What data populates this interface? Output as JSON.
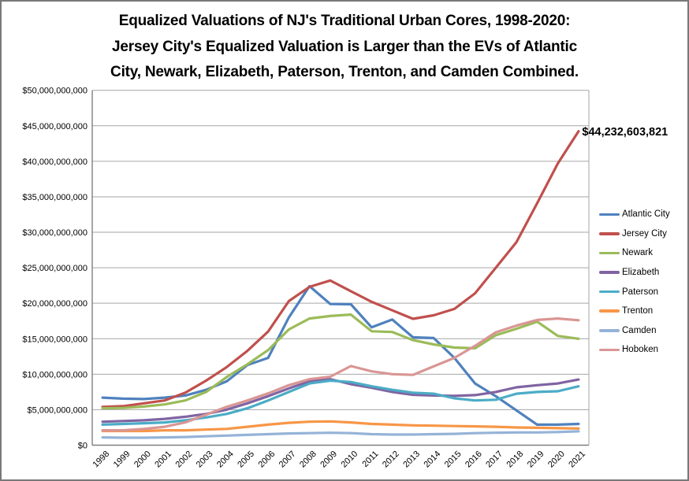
{
  "chart_data": {
    "type": "line",
    "title": "Equalized Valuations of NJ's Traditional Urban Cores, 1998-2020: Jersey City's Equalized Valuation is Larger than the EVs of Atlantic City, Newark, Elizabeth, Paterson, Trenton, and Camden Combined.",
    "title_lines": [
      "Equalized Valuations of NJ's Traditional Urban Cores, 1998-2020:",
      "Jersey City's Equalized Valuation is Larger than the EVs of Atlantic",
      "City, Newark, Elizabeth, Paterson, Trenton, and Camden Combined."
    ],
    "xlabel": "",
    "ylabel": "",
    "x": [
      "1998",
      "1999",
      "2000",
      "2001",
      "2002",
      "2003",
      "2004",
      "2005",
      "2006",
      "2007",
      "2008",
      "2009",
      "2010",
      "2011",
      "2012",
      "2013",
      "2014",
      "2015",
      "2016",
      "2017",
      "2018",
      "2019",
      "2020",
      "2021"
    ],
    "ylim": [
      0,
      50000000000
    ],
    "ytick_step": 5000000000,
    "y_tick_labels": [
      "$0",
      "$5,000,000,000",
      "$10,000,000,000",
      "$15,000,000,000",
      "$20,000,000,000",
      "$25,000,000,000",
      "$30,000,000,000",
      "$35,000,000,000",
      "$40,000,000,000",
      "$45,000,000,000",
      "$50,000,000,000"
    ],
    "grid": true,
    "legend_position": "right",
    "annotation": {
      "text": "$44,232,603,821",
      "series": "Jersey City",
      "year": "2021",
      "value": 44232603821
    },
    "series": [
      {
        "name": "Atlantic City",
        "color": "#4F81BD",
        "values": [
          6700000000,
          6550000000,
          6500000000,
          6700000000,
          7000000000,
          7800000000,
          9000000000,
          11300000000,
          12300000000,
          18000000000,
          22400000000,
          19900000000,
          19850000000,
          16600000000,
          17700000000,
          15200000000,
          15100000000,
          12300000000,
          8700000000,
          6900000000,
          4900000000,
          2900000000,
          2900000000,
          3000000000
        ]
      },
      {
        "name": "Jersey City",
        "color": "#C0504D",
        "values": [
          5400000000,
          5500000000,
          5900000000,
          6300000000,
          7400000000,
          9100000000,
          11000000000,
          13300000000,
          16000000000,
          20300000000,
          22300000000,
          23200000000,
          21700000000,
          20200000000,
          19000000000,
          17800000000,
          18300000000,
          19200000000,
          21400000000,
          25000000000,
          28600000000,
          34100000000,
          39700000000,
          44232603821
        ]
      },
      {
        "name": "Newark",
        "color": "#9BBB59",
        "values": [
          5200000000,
          5250000000,
          5450000000,
          5750000000,
          6300000000,
          7500000000,
          9600000000,
          11400000000,
          13400000000,
          16300000000,
          17850000000,
          18200000000,
          18400000000,
          16050000000,
          15950000000,
          14800000000,
          14200000000,
          13750000000,
          13650000000,
          15500000000,
          16400000000,
          17400000000,
          15400000000,
          15000000000
        ]
      },
      {
        "name": "Elizabeth",
        "color": "#8064A2",
        "values": [
          3300000000,
          3400000000,
          3500000000,
          3700000000,
          4000000000,
          4400000000,
          5000000000,
          5900000000,
          6900000000,
          8000000000,
          9000000000,
          9300000000,
          8600000000,
          8100000000,
          7500000000,
          7100000000,
          7000000000,
          6950000000,
          7050000000,
          7500000000,
          8150000000,
          8450000000,
          8700000000,
          9250000000
        ]
      },
      {
        "name": "Paterson",
        "color": "#4BACC6",
        "values": [
          2900000000,
          3000000000,
          3100000000,
          3200000000,
          3500000000,
          3900000000,
          4400000000,
          5200000000,
          6300000000,
          7500000000,
          8700000000,
          9100000000,
          8900000000,
          8300000000,
          7800000000,
          7400000000,
          7250000000,
          6600000000,
          6300000000,
          6400000000,
          7250000000,
          7500000000,
          7600000000,
          8300000000
        ]
      },
      {
        "name": "Trenton",
        "color": "#F79646",
        "values": [
          2000000000,
          2000000000,
          2000000000,
          2100000000,
          2100000000,
          2200000000,
          2300000000,
          2600000000,
          2900000000,
          3150000000,
          3300000000,
          3350000000,
          3200000000,
          3000000000,
          2900000000,
          2800000000,
          2750000000,
          2700000000,
          2650000000,
          2600000000,
          2500000000,
          2450000000,
          2400000000,
          2350000000
        ]
      },
      {
        "name": "Camden",
        "color": "#95B3D7",
        "values": [
          1100000000,
          1050000000,
          1050000000,
          1100000000,
          1150000000,
          1250000000,
          1350000000,
          1450000000,
          1550000000,
          1650000000,
          1700000000,
          1750000000,
          1700000000,
          1550000000,
          1500000000,
          1500000000,
          1550000000,
          1600000000,
          1700000000,
          1750000000,
          1800000000,
          1800000000,
          1850000000,
          1950000000
        ]
      },
      {
        "name": "Hoboken",
        "color": "#D99694",
        "values": [
          2100000000,
          2100000000,
          2300000000,
          2600000000,
          3200000000,
          4300000000,
          5400000000,
          6300000000,
          7300000000,
          8450000000,
          9300000000,
          9650000000,
          11150000000,
          10400000000,
          10000000000,
          9900000000,
          11100000000,
          12300000000,
          14000000000,
          15900000000,
          16850000000,
          17650000000,
          17850000000,
          17600000000
        ]
      }
    ],
    "colors": {
      "gridline": "#A6A6A6",
      "axis": "#808080",
      "text": "#000000"
    }
  }
}
